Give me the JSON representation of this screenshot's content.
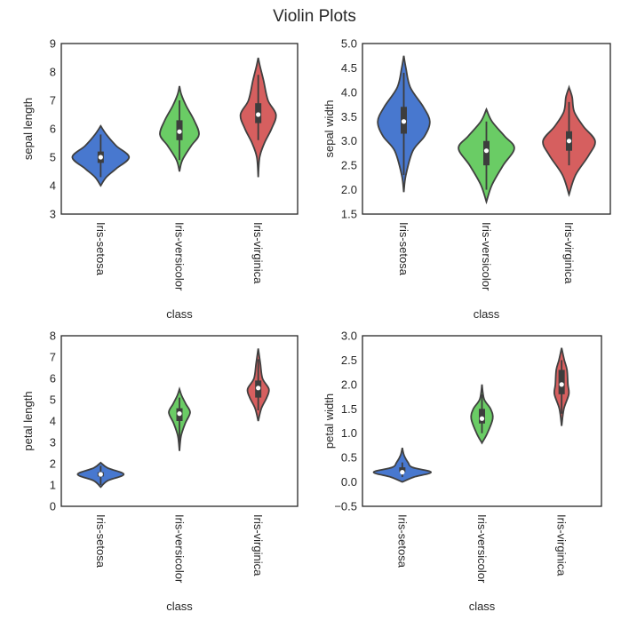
{
  "title": "Violin Plots",
  "colors": {
    "Iris-setosa": "#4878cf",
    "Iris-versicolor": "#6acc65",
    "Iris-virginica": "#d65f5f",
    "outline": "#404040"
  },
  "chart_data": [
    {
      "type": "violin",
      "ylabel": "sepal length",
      "xlabel": "class",
      "categories": [
        "Iris-setosa",
        "Iris-versicolor",
        "Iris-virginica"
      ],
      "ylim": [
        3,
        9
      ],
      "yticks": [
        "3",
        "4",
        "5",
        "6",
        "7",
        "8",
        "9"
      ],
      "ytick_values": [
        3,
        4,
        5,
        6,
        7,
        8,
        9
      ],
      "violins": [
        {
          "scale": 0.8,
          "density": [
            [
              4.0,
              0
            ],
            [
              4.3,
              0.2
            ],
            [
              4.6,
              0.55
            ],
            [
              5.0,
              1
            ],
            [
              5.4,
              0.55
            ],
            [
              5.8,
              0.2
            ],
            [
              6.1,
              0
            ]
          ],
          "q1": 4.8,
          "median": 5.0,
          "q3": 5.2,
          "whisker": [
            4.3,
            5.8
          ]
        },
        {
          "scale": 0.55,
          "density": [
            [
              4.5,
              0
            ],
            [
              4.9,
              0.15
            ],
            [
              5.4,
              0.6
            ],
            [
              5.8,
              1
            ],
            [
              6.3,
              0.75
            ],
            [
              6.8,
              0.35
            ],
            [
              7.2,
              0.1
            ],
            [
              7.5,
              0
            ]
          ],
          "q1": 5.6,
          "median": 5.9,
          "q3": 6.3,
          "whisker": [
            4.9,
            7.0
          ]
        },
        {
          "scale": 0.5,
          "density": [
            [
              4.3,
              0
            ],
            [
              5.0,
              0.08
            ],
            [
              5.5,
              0.35
            ],
            [
              6.0,
              0.75
            ],
            [
              6.5,
              1
            ],
            [
              7.0,
              0.55
            ],
            [
              7.7,
              0.3
            ],
            [
              8.2,
              0.1
            ],
            [
              8.5,
              0
            ]
          ],
          "q1": 6.2,
          "median": 6.5,
          "q3": 6.9,
          "whisker": [
            5.6,
            7.9
          ]
        }
      ]
    },
    {
      "type": "violin",
      "ylabel": "sepal width",
      "xlabel": "class",
      "categories": [
        "Iris-setosa",
        "Iris-versicolor",
        "Iris-virginica"
      ],
      "ylim": [
        1.5,
        5.0
      ],
      "yticks": [
        "1.5",
        "2.0",
        "2.5",
        "3.0",
        "3.5",
        "4.0",
        "4.5",
        "5.0"
      ],
      "ytick_values": [
        1.5,
        2,
        2.5,
        3,
        3.5,
        4,
        4.5,
        5
      ],
      "violins": [
        {
          "scale": 0.7,
          "density": [
            [
              1.95,
              0
            ],
            [
              2.3,
              0.08
            ],
            [
              2.8,
              0.35
            ],
            [
              3.1,
              0.8
            ],
            [
              3.4,
              1
            ],
            [
              3.7,
              0.75
            ],
            [
              4.1,
              0.25
            ],
            [
              4.5,
              0.08
            ],
            [
              4.75,
              0
            ]
          ],
          "q1": 3.15,
          "median": 3.4,
          "q3": 3.7,
          "whisker": [
            2.3,
            4.4
          ]
        },
        {
          "scale": 0.75,
          "density": [
            [
              1.75,
              0
            ],
            [
              2.1,
              0.2
            ],
            [
              2.5,
              0.6
            ],
            [
              2.85,
              1
            ],
            [
              3.1,
              0.65
            ],
            [
              3.4,
              0.2
            ],
            [
              3.65,
              0
            ]
          ],
          "q1": 2.5,
          "median": 2.8,
          "q3": 3.0,
          "whisker": [
            2.0,
            3.4
          ]
        },
        {
          "scale": 0.7,
          "density": [
            [
              1.9,
              0
            ],
            [
              2.3,
              0.25
            ],
            [
              2.7,
              0.75
            ],
            [
              3.0,
              1
            ],
            [
              3.3,
              0.55
            ],
            [
              3.6,
              0.2
            ],
            [
              3.9,
              0.12
            ],
            [
              4.1,
              0
            ]
          ],
          "q1": 2.8,
          "median": 3.0,
          "q3": 3.2,
          "whisker": [
            2.5,
            3.8
          ]
        }
      ]
    },
    {
      "type": "violin",
      "ylabel": "petal length",
      "xlabel": "class",
      "categories": [
        "Iris-setosa",
        "Iris-versicolor",
        "Iris-virginica"
      ],
      "ylim": [
        0,
        8
      ],
      "yticks": [
        "0",
        "1",
        "2",
        "3",
        "4",
        "5",
        "6",
        "7",
        "8"
      ],
      "ytick_values": [
        0,
        1,
        2,
        3,
        4,
        5,
        6,
        7,
        8
      ],
      "violins": [
        {
          "scale": 0.65,
          "density": [
            [
              0.9,
              0
            ],
            [
              1.2,
              0.3
            ],
            [
              1.5,
              1
            ],
            [
              1.8,
              0.3
            ],
            [
              2.05,
              0
            ]
          ],
          "q1": 1.4,
          "median": 1.5,
          "q3": 1.6,
          "whisker": [
            1.0,
            1.9
          ]
        },
        {
          "scale": 0.3,
          "density": [
            [
              2.6,
              0
            ],
            [
              3.3,
              0.15
            ],
            [
              3.9,
              0.55
            ],
            [
              4.4,
              1
            ],
            [
              4.8,
              0.6
            ],
            [
              5.2,
              0.2
            ],
            [
              5.5,
              0
            ]
          ],
          "q1": 4.0,
          "median": 4.35,
          "q3": 4.6,
          "whisker": [
            3.0,
            5.1
          ]
        },
        {
          "scale": 0.3,
          "density": [
            [
              4.0,
              0
            ],
            [
              4.6,
              0.3
            ],
            [
              5.1,
              0.8
            ],
            [
              5.5,
              1
            ],
            [
              6.0,
              0.4
            ],
            [
              6.7,
              0.2
            ],
            [
              7.4,
              0
            ]
          ],
          "q1": 5.1,
          "median": 5.55,
          "q3": 5.9,
          "whisker": [
            4.5,
            6.9
          ]
        }
      ]
    },
    {
      "type": "violin",
      "ylabel": "petal width",
      "xlabel": "class",
      "categories": [
        "Iris-setosa",
        "Iris-versicolor",
        "Iris-virginica"
      ],
      "ylim": [
        -0.5,
        3.0
      ],
      "yticks": [
        "−0.5",
        "0.0",
        "0.5",
        "1.0",
        "1.5",
        "2.0",
        "2.5",
        "3.0"
      ],
      "ytick_values": [
        -0.5,
        0,
        0.5,
        1,
        1.5,
        2,
        2.5,
        3
      ],
      "violins": [
        {
          "scale": 0.8,
          "density": [
            [
              0.0,
              0
            ],
            [
              0.1,
              0.4
            ],
            [
              0.2,
              1
            ],
            [
              0.3,
              0.35
            ],
            [
              0.4,
              0.2
            ],
            [
              0.55,
              0.06
            ],
            [
              0.7,
              0
            ]
          ],
          "q1": 0.2,
          "median": 0.2,
          "q3": 0.3,
          "whisker": [
            0.1,
            0.4
          ]
        },
        {
          "scale": 0.3,
          "density": [
            [
              0.8,
              0
            ],
            [
              1.0,
              0.5
            ],
            [
              1.3,
              1
            ],
            [
              1.5,
              0.8
            ],
            [
              1.7,
              0.2
            ],
            [
              2.0,
              0
            ]
          ],
          "q1": 1.2,
          "median": 1.3,
          "q3": 1.5,
          "whisker": [
            1.0,
            1.8
          ]
        },
        {
          "scale": 0.25,
          "density": [
            [
              1.15,
              0
            ],
            [
              1.5,
              0.25
            ],
            [
              1.8,
              0.8
            ],
            [
              2.0,
              0.7
            ],
            [
              2.3,
              0.6
            ],
            [
              2.5,
              0.3
            ],
            [
              2.75,
              0
            ]
          ],
          "q1": 1.8,
          "median": 2.0,
          "q3": 2.3,
          "whisker": [
            1.4,
            2.5
          ]
        }
      ]
    }
  ]
}
